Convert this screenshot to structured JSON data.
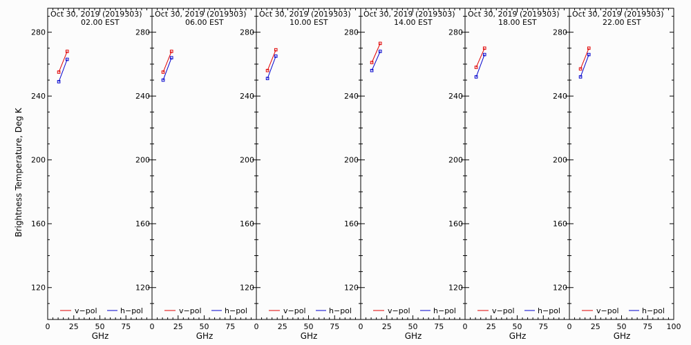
{
  "colors": {
    "v_pol": "#e00000",
    "h_pol": "#0000cc",
    "frame": "#000000",
    "background": "#fcfcfc"
  },
  "ylabel": "Brightness Temperature, Deg K",
  "xlabel": "GHz",
  "legend": {
    "v_pol": "v−pol",
    "h_pol": "h−pol"
  },
  "chart_data": [
    {
      "type": "line",
      "title": "Oct 30, 2019 (2019303)",
      "subtitle": "02.00 EST",
      "xlabel": "GHz",
      "ylabel": "Brightness Temperature, Deg K",
      "xlim": [
        0,
        100
      ],
      "ylim": [
        100,
        295
      ],
      "xticks": [
        "0",
        "25",
        "50",
        "75"
      ],
      "yticks": [
        "120",
        "160",
        "200",
        "240",
        "280"
      ],
      "legend_position": "bottom",
      "series": [
        {
          "name": "v−pol",
          "x": [
            10.65,
            18.7
          ],
          "y": [
            255,
            268
          ]
        },
        {
          "name": "h−pol",
          "x": [
            10.65,
            18.7
          ],
          "y": [
            249,
            263
          ]
        }
      ]
    },
    {
      "type": "line",
      "title": "Oct 30, 2019 (2019303)",
      "subtitle": "06.00 EST",
      "xlabel": "GHz",
      "xlim": [
        0,
        100
      ],
      "ylim": [
        100,
        295
      ],
      "xticks": [
        "0",
        "25",
        "50",
        "75"
      ],
      "yticks": [
        "120",
        "160",
        "200",
        "240",
        "280"
      ],
      "legend_position": "bottom",
      "series": [
        {
          "name": "v−pol",
          "x": [
            10.65,
            18.7
          ],
          "y": [
            255,
            268
          ]
        },
        {
          "name": "h−pol",
          "x": [
            10.65,
            18.7
          ],
          "y": [
            250,
            264
          ]
        }
      ]
    },
    {
      "type": "line",
      "title": "Oct 30, 2019 (2019303)",
      "subtitle": "10.00 EST",
      "xlabel": "GHz",
      "xlim": [
        0,
        100
      ],
      "ylim": [
        100,
        295
      ],
      "xticks": [
        "0",
        "25",
        "50",
        "75"
      ],
      "yticks": [
        "120",
        "160",
        "200",
        "240",
        "280"
      ],
      "legend_position": "bottom",
      "series": [
        {
          "name": "v−pol",
          "x": [
            10.65,
            18.7
          ],
          "y": [
            256,
            269
          ]
        },
        {
          "name": "h−pol",
          "x": [
            10.65,
            18.7
          ],
          "y": [
            251,
            265
          ]
        }
      ]
    },
    {
      "type": "line",
      "title": "Oct 30, 2019 (2019303)",
      "subtitle": "14.00 EST",
      "xlabel": "GHz",
      "xlim": [
        0,
        100
      ],
      "ylim": [
        100,
        295
      ],
      "xticks": [
        "0",
        "25",
        "50",
        "75"
      ],
      "yticks": [
        "120",
        "160",
        "200",
        "240",
        "280"
      ],
      "legend_position": "bottom",
      "series": [
        {
          "name": "v−pol",
          "x": [
            10.65,
            18.7
          ],
          "y": [
            261,
            273
          ]
        },
        {
          "name": "h−pol",
          "x": [
            10.65,
            18.7
          ],
          "y": [
            256,
            268
          ]
        }
      ]
    },
    {
      "type": "line",
      "title": "Oct 30, 2019 (2019303)",
      "subtitle": "18.00 EST",
      "xlabel": "GHz",
      "xlim": [
        0,
        100
      ],
      "ylim": [
        100,
        295
      ],
      "xticks": [
        "0",
        "25",
        "50",
        "75"
      ],
      "yticks": [
        "120",
        "160",
        "200",
        "240",
        "280"
      ],
      "legend_position": "bottom",
      "series": [
        {
          "name": "v−pol",
          "x": [
            10.65,
            18.7
          ],
          "y": [
            258,
            270
          ]
        },
        {
          "name": "h−pol",
          "x": [
            10.65,
            18.7
          ],
          "y": [
            252,
            266
          ]
        }
      ]
    },
    {
      "type": "line",
      "title": "Oct 30, 2019 (2019303)",
      "subtitle": "22.00 EST",
      "xlabel": "GHz",
      "xlim": [
        0,
        100
      ],
      "ylim": [
        100,
        295
      ],
      "xticks": [
        "0",
        "25",
        "50",
        "75",
        "100"
      ],
      "yticks": [
        "120",
        "160",
        "200",
        "240",
        "280"
      ],
      "legend_position": "bottom",
      "series": [
        {
          "name": "v−pol",
          "x": [
            10.65,
            18.7
          ],
          "y": [
            257,
            270
          ]
        },
        {
          "name": "h−pol",
          "x": [
            10.65,
            18.7
          ],
          "y": [
            252,
            266
          ]
        }
      ]
    }
  ]
}
